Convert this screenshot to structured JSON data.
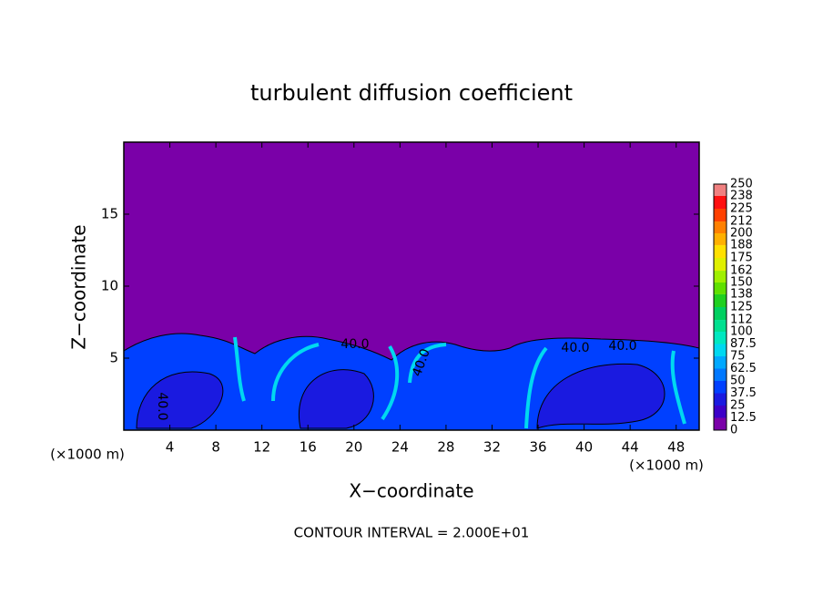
{
  "chart_data": {
    "type": "contour",
    "title": "turbulent diffusion coefficient",
    "x_label": "X−coordinate",
    "y_label": "Z−coordinate",
    "x_unit_label": "(×1000 m)",
    "y_unit_label": "(×1000 m)",
    "xlim": [
      0,
      50
    ],
    "xticks": [
      4,
      8,
      12,
      16,
      20,
      24,
      28,
      32,
      36,
      40,
      44,
      48
    ],
    "ylim": [
      0,
      20
    ],
    "yticks": [
      5,
      10,
      15
    ],
    "colorbar": {
      "levels": [
        0,
        12.5,
        25,
        37.5,
        50,
        62.5,
        75,
        87.5,
        100,
        112,
        125,
        138,
        150,
        162,
        175,
        188,
        200,
        212,
        225,
        238,
        250
      ],
      "colors": [
        "#7a00a8",
        "#3c00c8",
        "#1a1ae0",
        "#0040ff",
        "#0078ff",
        "#00a8ff",
        "#00d8f0",
        "#00e8c0",
        "#00e090",
        "#00d060",
        "#20d020",
        "#60e000",
        "#a0f000",
        "#e0f000",
        "#ffe000",
        "#ffb000",
        "#ff8000",
        "#ff4000",
        "#ff1010",
        "#f08080"
      ]
    },
    "annotations": [
      "40.0",
      "40.0",
      "40.0",
      "40.0",
      "40.0"
    ],
    "footer": "CONTOUR INTERVAL = 2.000E+01"
  }
}
